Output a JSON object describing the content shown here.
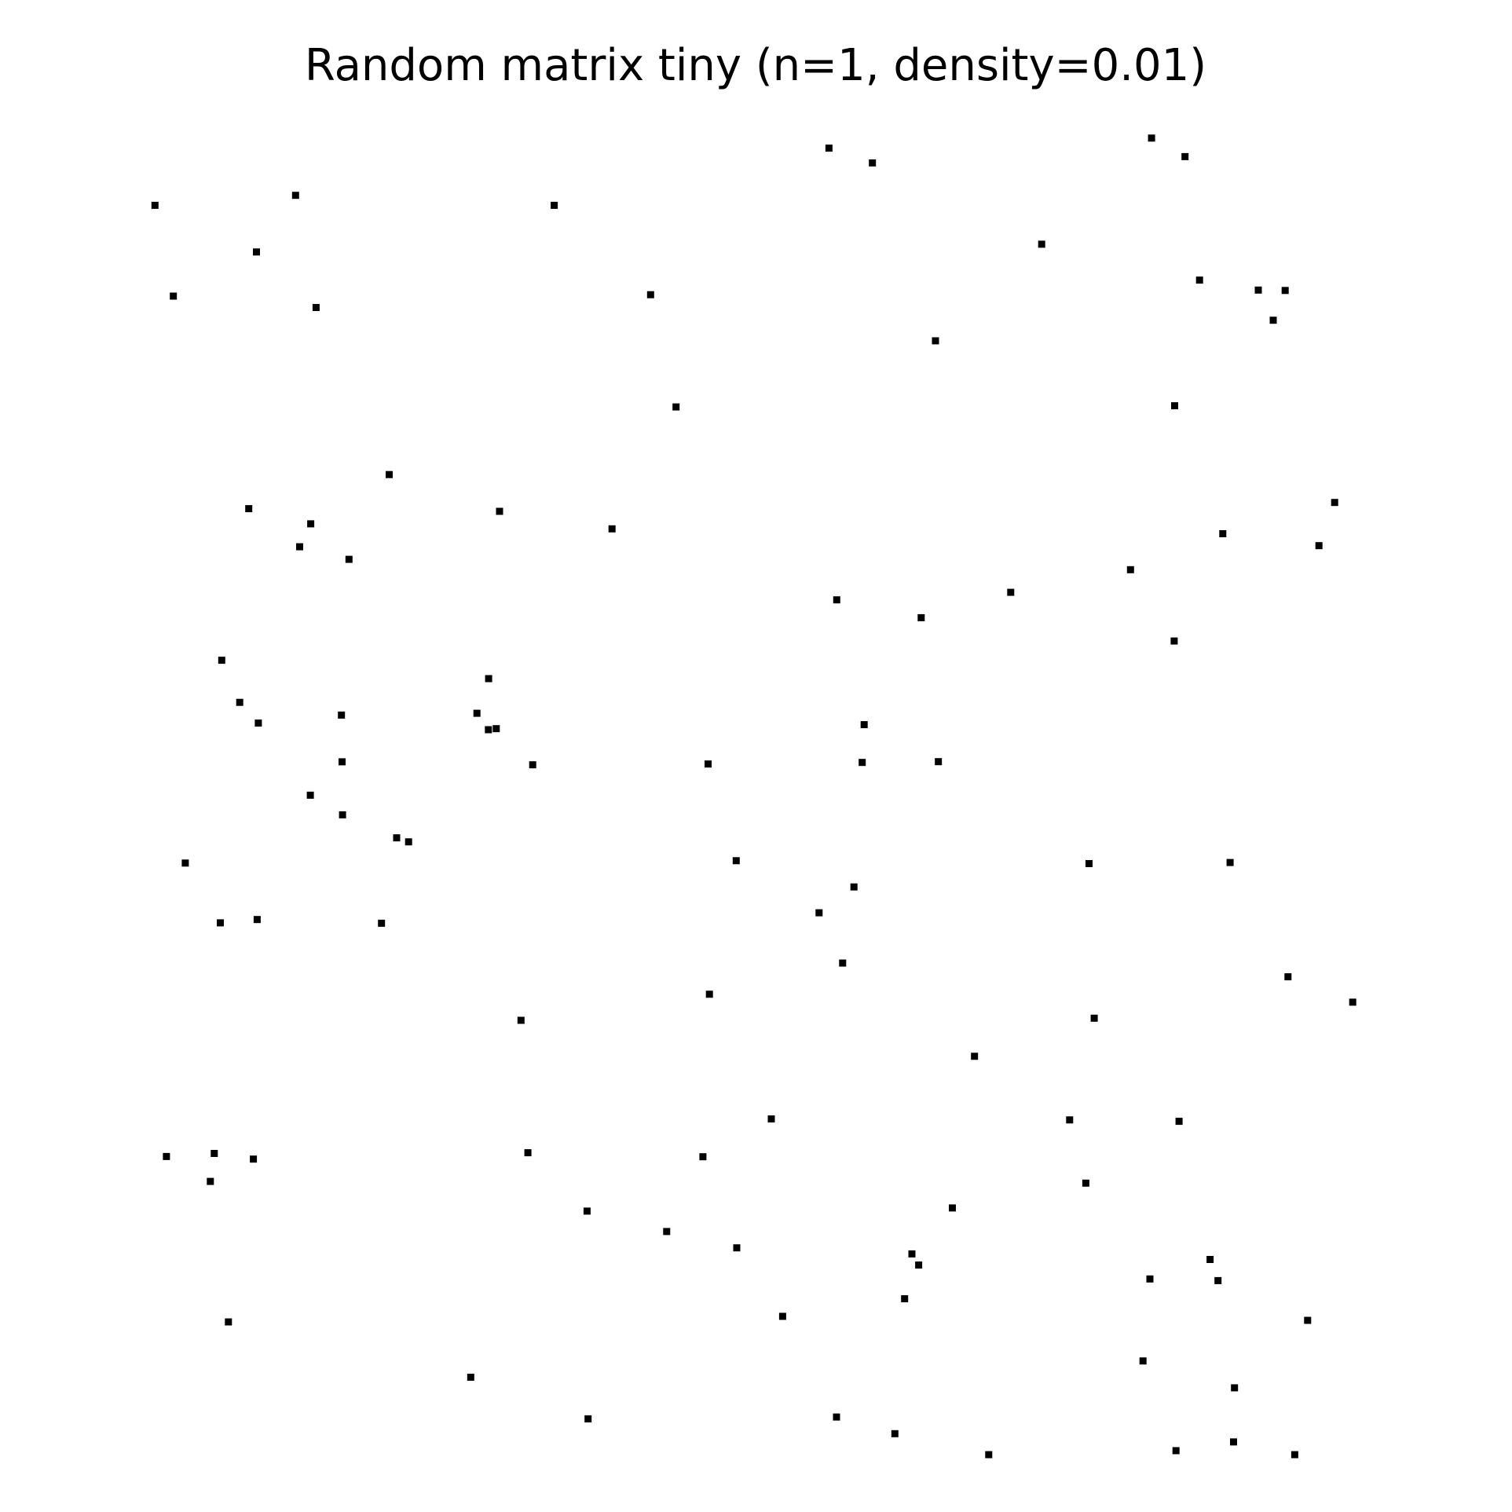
{
  "chart_data": {
    "type": "scatter",
    "title": "Random matrix tiny (n=1, density=0.01)",
    "axes_visible": false,
    "grid": false,
    "xlim": [
      0,
      1
    ],
    "ylim": [
      0,
      1
    ],
    "marker": "square",
    "marker_color": "#000000",
    "points": [
      [
        0.5513,
        0.9854
      ],
      [
        0.584,
        0.9743
      ],
      [
        0.7939,
        0.993
      ],
      [
        0.8191,
        0.979
      ],
      [
        0.0445,
        0.9423
      ],
      [
        0.1502,
        0.9498
      ],
      [
        0.3447,
        0.9423
      ],
      [
        0.1208,
        0.9071
      ],
      [
        0.7113,
        0.913
      ],
      [
        0.0583,
        0.8738
      ],
      [
        0.1656,
        0.8652
      ],
      [
        0.4172,
        0.8749
      ],
      [
        0.83,
        0.8859
      ],
      [
        0.8742,
        0.8784
      ],
      [
        0.8944,
        0.8781
      ],
      [
        0.8854,
        0.8556
      ],
      [
        0.6314,
        0.8401
      ],
      [
        0.4363,
        0.7902
      ],
      [
        0.8113,
        0.7911
      ],
      [
        0.2206,
        0.7392
      ],
      [
        0.115,
        0.7135
      ],
      [
        0.3036,
        0.7115
      ],
      [
        0.1616,
        0.7021
      ],
      [
        0.1533,
        0.6848
      ],
      [
        0.3882,
        0.6983
      ],
      [
        0.9316,
        0.7182
      ],
      [
        0.8475,
        0.6946
      ],
      [
        0.9198,
        0.6856
      ],
      [
        0.1904,
        0.6753
      ],
      [
        0.7781,
        0.6675
      ],
      [
        0.5572,
        0.6447
      ],
      [
        0.688,
        0.6504
      ],
      [
        0.6207,
        0.6313
      ],
      [
        0.8109,
        0.6137
      ],
      [
        0.0947,
        0.5992
      ],
      [
        0.2954,
        0.5853
      ],
      [
        0.1082,
        0.5674
      ],
      [
        0.1847,
        0.5578
      ],
      [
        0.1222,
        0.5518
      ],
      [
        0.2866,
        0.5592
      ],
      [
        0.2952,
        0.5468
      ],
      [
        0.3011,
        0.5476
      ],
      [
        0.5778,
        0.5506
      ],
      [
        0.3285,
        0.5203
      ],
      [
        0.4604,
        0.5209
      ],
      [
        0.5763,
        0.5221
      ],
      [
        0.6336,
        0.5227
      ],
      [
        0.1852,
        0.5226
      ],
      [
        0.1613,
        0.4974
      ],
      [
        0.1855,
        0.4826
      ],
      [
        0.2262,
        0.4652
      ],
      [
        0.2352,
        0.4622
      ],
      [
        0.0673,
        0.4462
      ],
      [
        0.4816,
        0.448
      ],
      [
        0.7469,
        0.4458
      ],
      [
        0.853,
        0.4466
      ],
      [
        0.5701,
        0.4282
      ],
      [
        0.5439,
        0.4087
      ],
      [
        0.0936,
        0.4011
      ],
      [
        0.1213,
        0.4036
      ],
      [
        0.2148,
        0.4008
      ],
      [
        0.5616,
        0.3708
      ],
      [
        0.4614,
        0.3473
      ],
      [
        0.8965,
        0.3604
      ],
      [
        0.9452,
        0.3413
      ],
      [
        0.3197,
        0.3276
      ],
      [
        0.7508,
        0.3292
      ],
      [
        0.6608,
        0.3005
      ],
      [
        0.508,
        0.2532
      ],
      [
        0.7323,
        0.2525
      ],
      [
        0.8146,
        0.2514
      ],
      [
        0.0531,
        0.2249
      ],
      [
        0.0891,
        0.2272
      ],
      [
        0.1185,
        0.2229
      ],
      [
        0.0861,
        0.2061
      ],
      [
        0.3249,
        0.2277
      ],
      [
        0.4565,
        0.2247
      ],
      [
        0.7445,
        0.2048
      ],
      [
        0.6441,
        0.1861
      ],
      [
        0.3694,
        0.1837
      ],
      [
        0.4293,
        0.1683
      ],
      [
        0.482,
        0.156
      ],
      [
        0.6137,
        0.1514
      ],
      [
        0.6188,
        0.143
      ],
      [
        0.8379,
        0.1472
      ],
      [
        0.7927,
        0.1325
      ],
      [
        0.8439,
        0.1313
      ],
      [
        0.6082,
        0.1176
      ],
      [
        0.5165,
        0.1043
      ],
      [
        0.9113,
        0.1013
      ],
      [
        0.0997,
        0.1001
      ],
      [
        0.7875,
        0.0707
      ],
      [
        0.8563,
        0.0504
      ],
      [
        0.2819,
        0.0584
      ],
      [
        0.3702,
        0.027
      ],
      [
        0.557,
        0.0284
      ],
      [
        0.6009,
        0.0158
      ],
      [
        0.6715,
        0.0
      ],
      [
        0.8123,
        0.003
      ],
      [
        0.8556,
        0.0096
      ],
      [
        0.9016,
        0.0
      ]
    ]
  }
}
